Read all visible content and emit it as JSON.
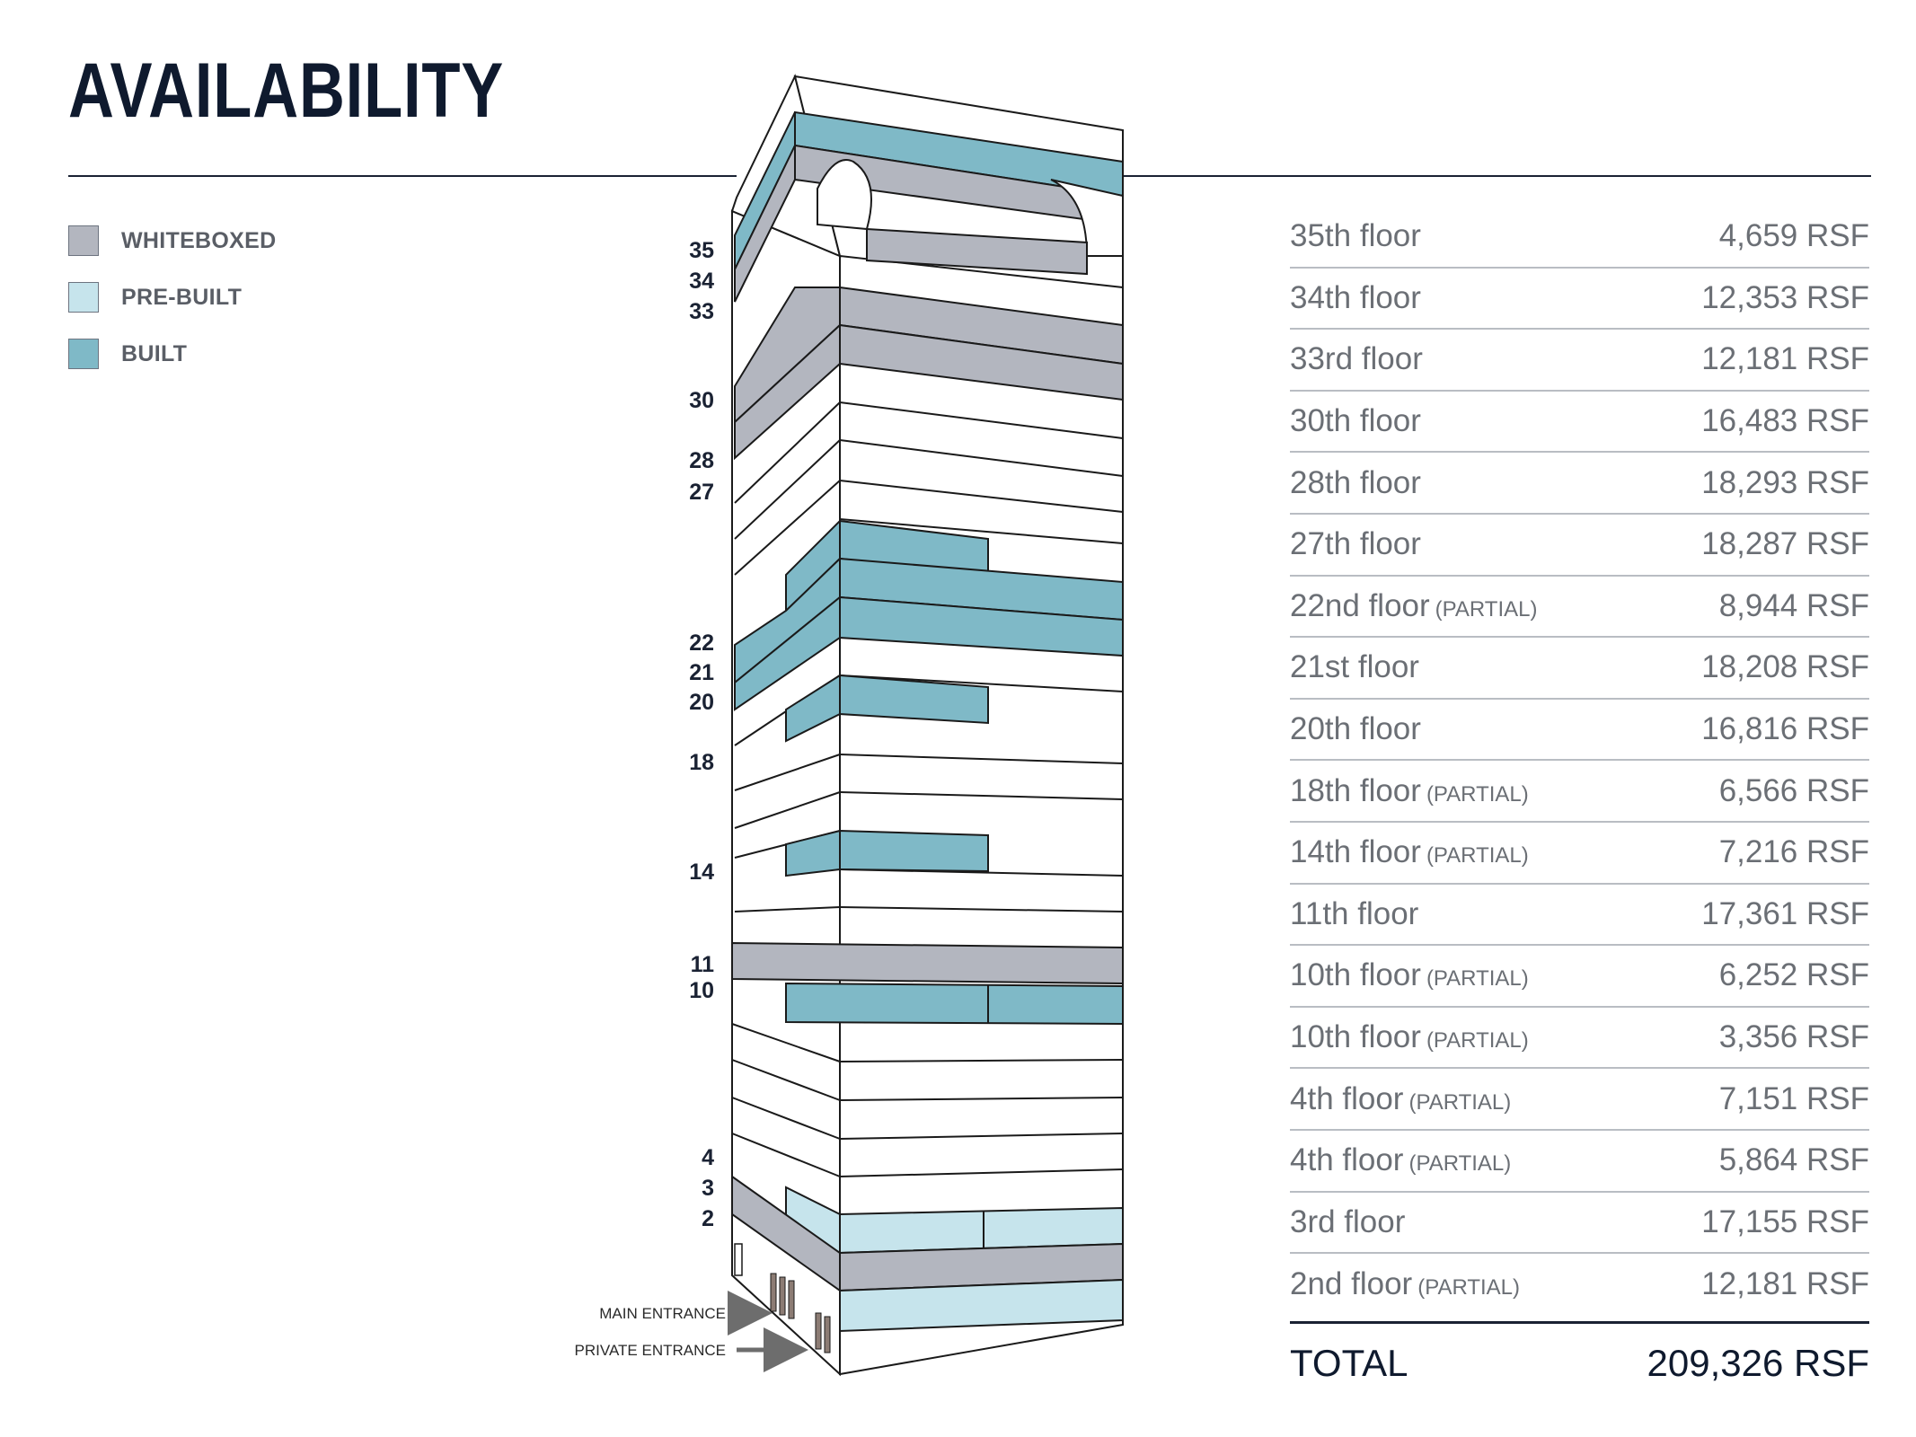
{
  "title": "AVAILABILITY",
  "colors": {
    "whiteboxed": "#b3b6bf",
    "prebuilt": "#c6e4ec",
    "built": "#7fb9c7",
    "outline": "#1a1a1a",
    "rule": "#1a2233"
  },
  "legend": [
    {
      "key": "whiteboxed",
      "label": "WHITEBOXED"
    },
    {
      "key": "prebuilt",
      "label": "PRE-BUILT"
    },
    {
      "key": "built",
      "label": "BUILT"
    }
  ],
  "building": {
    "floor_labels": [
      "35",
      "34",
      "33",
      "30",
      "28",
      "27",
      "22",
      "21",
      "20",
      "18",
      "14",
      "11",
      "10",
      "4",
      "3",
      "2"
    ],
    "entrances": {
      "main": "MAIN ENTRANCE",
      "private": "PRIVATE ENTRANCE"
    }
  },
  "floors": [
    {
      "floor": "35th floor",
      "partial": "",
      "rsf": "4,659 RSF"
    },
    {
      "floor": "34th floor",
      "partial": "",
      "rsf": "12,353 RSF"
    },
    {
      "floor": "33rd floor",
      "partial": "",
      "rsf": "12,181 RSF"
    },
    {
      "floor": "30th floor",
      "partial": "",
      "rsf": "16,483 RSF"
    },
    {
      "floor": "28th floor",
      "partial": "",
      "rsf": "18,293 RSF"
    },
    {
      "floor": "27th floor",
      "partial": "",
      "rsf": "18,287 RSF"
    },
    {
      "floor": "22nd floor",
      "partial": "(PARTIAL)",
      "rsf": "8,944 RSF"
    },
    {
      "floor": "21st floor",
      "partial": "",
      "rsf": "18,208 RSF"
    },
    {
      "floor": "20th floor",
      "partial": "",
      "rsf": "16,816 RSF"
    },
    {
      "floor": "18th floor",
      "partial": "(PARTIAL)",
      "rsf": "6,566 RSF"
    },
    {
      "floor": "14th floor",
      "partial": "(PARTIAL)",
      "rsf": "7,216 RSF"
    },
    {
      "floor": "11th floor",
      "partial": "",
      "rsf": "17,361 RSF"
    },
    {
      "floor": "10th floor",
      "partial": "(PARTIAL)",
      "rsf": "6,252 RSF"
    },
    {
      "floor": "10th floor",
      "partial": "(PARTIAL)",
      "rsf": "3,356 RSF"
    },
    {
      "floor": "4th floor",
      "partial": "(PARTIAL)",
      "rsf": "7,151 RSF"
    },
    {
      "floor": "4th floor",
      "partial": "(PARTIAL)",
      "rsf": "5,864 RSF"
    },
    {
      "floor": "3rd floor",
      "partial": "",
      "rsf": "17,155 RSF"
    },
    {
      "floor": "2nd floor",
      "partial": "(PARTIAL)",
      "rsf": "12,181 RSF"
    }
  ],
  "total": {
    "label": "TOTAL",
    "rsf": "209,326 RSF"
  }
}
